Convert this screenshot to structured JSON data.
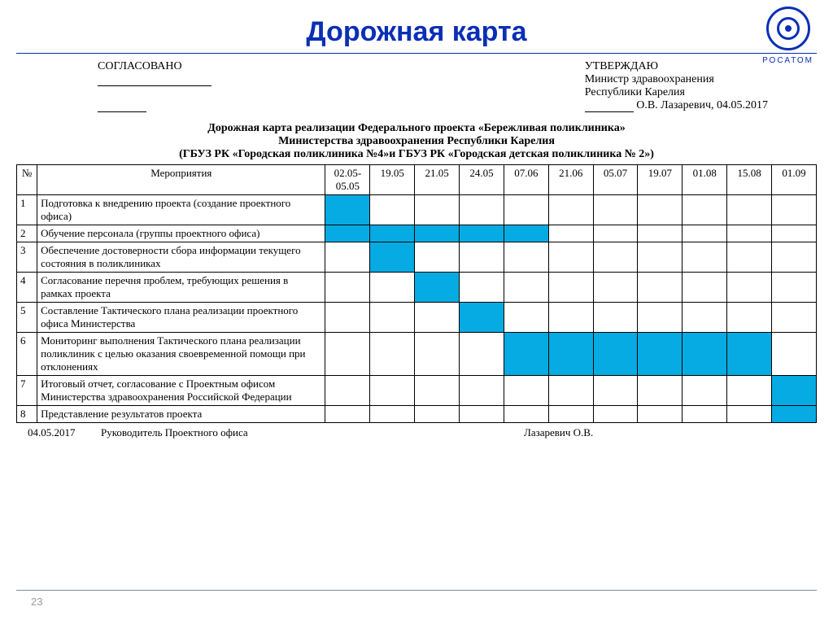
{
  "title": "Дорожная карта",
  "logo_label": "РОСАТОМ",
  "approval": {
    "left_header": "СОГЛАСОВАНО",
    "right_header": "УТВЕРЖДАЮ",
    "right_line1": "Министр здравоохранения",
    "right_line2": "Республики Карелия",
    "right_sign": "О.В. Лазаревич, 04.05.2017"
  },
  "doctitle": {
    "l1": "Дорожная карта реализации Федерального проекта «Бережливая поликлиника»",
    "l2": "Министерства здравоохранения Республики Карелия",
    "l3": "(ГБУЗ РК «Городская поликлиника №4»и ГБУЗ РК «Городская детская поликлиника № 2»)"
  },
  "header": {
    "num": "№",
    "activity": "Мероприятия",
    "dates": [
      "02.05-05.05",
      "19.05",
      "21.05",
      "24.05",
      "07.06",
      "21.06",
      "05.07",
      "19.07",
      "01.08",
      "15.08",
      "01.09"
    ]
  },
  "rows": [
    {
      "n": "1",
      "text": "Подготовка к внедрению проекта (создание проектного офиса)",
      "fill": [
        0
      ]
    },
    {
      "n": "2",
      "text": "Обучение персонала (группы проектного офиса)",
      "fill": [
        0,
        1,
        2,
        3,
        4
      ]
    },
    {
      "n": "3",
      "text": "Обеспечение достоверности сбора информации  текущего состояния в поликлиниках",
      "fill": [
        1
      ]
    },
    {
      "n": "4",
      "text": "Согласование  перечня проблем, требующих решения в рамках проекта",
      "fill": [
        2
      ]
    },
    {
      "n": "5",
      "text": "Составление Тактического плана реализации проектного офиса Министерства",
      "fill": [
        3
      ]
    },
    {
      "n": "6",
      "text": "Мониторинг выполнения Тактического плана реализации поликлиник с целью оказания своевременной помощи при отклонениях",
      "fill": [
        4,
        5,
        6,
        7,
        8,
        9
      ]
    },
    {
      "n": "7",
      "text": "Итоговый отчет, согласование с Проектным офисом Министерства здравоохранения Российской Федерации",
      "fill": [
        10
      ]
    },
    {
      "n": "8",
      "text": "Представление результатов проекта",
      "fill": [
        10
      ]
    }
  ],
  "footer": {
    "date": "04.05.2017",
    "role": "Руководитель Проектного офиса",
    "name": "Лазаревич О.В."
  },
  "pagenum": "23",
  "colors": {
    "fill": "#05abe2",
    "title": "#0a2fb5"
  }
}
